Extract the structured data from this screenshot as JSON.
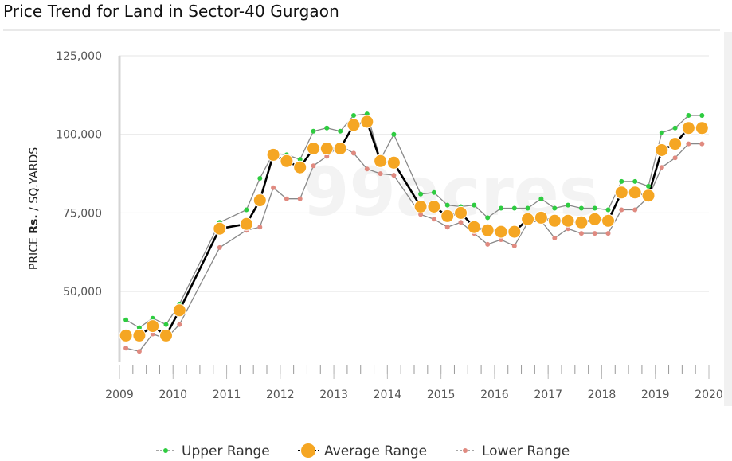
{
  "header": {
    "title": "Price Trend for Land in Sector-40 Gurgaon"
  },
  "watermark": "99acres",
  "colors": {
    "upper": "#2ecc40",
    "average": "#f5a623",
    "average_line": "#000000",
    "lower": "#e08a80",
    "range_line": "#888888",
    "grid": "#e6e6e6"
  },
  "chart_data": {
    "type": "line",
    "title": "Price Trend for Land in Sector-40 Gurgaon",
    "ylabel_prefix": "PRICE ",
    "ylabel_bold": "Rs.",
    "ylabel_suffix": " / SQ.YARDS",
    "xlabel": "",
    "y_ticks": [
      "50,000",
      "75,000",
      "100,000",
      "125,000"
    ],
    "y_tick_values": [
      50000,
      75000,
      100000,
      125000
    ],
    "ylim": [
      27500,
      125000
    ],
    "x_ticks": [
      "2009",
      "2010",
      "2011",
      "2012",
      "2013",
      "2014",
      "2015",
      "2016",
      "2017",
      "2018",
      "2019",
      "2020"
    ],
    "xlim": [
      2009.0,
      2020.0
    ],
    "grid": true,
    "legend_position": "bottom",
    "series": [
      {
        "name": "Upper Range",
        "x": [
          2009.12,
          2009.37,
          2009.62,
          2009.87,
          2010.12,
          2010.87,
          2011.37,
          2011.62,
          2011.87,
          2012.12,
          2012.37,
          2012.62,
          2012.87,
          2013.12,
          2013.37,
          2013.62,
          2013.87,
          2014.12,
          2014.62,
          2014.87,
          2015.12,
          2015.37,
          2015.62,
          2015.87,
          2016.12,
          2016.37,
          2016.62,
          2016.87,
          2017.12,
          2017.37,
          2017.62,
          2017.87,
          2018.12,
          2018.37,
          2018.62,
          2018.87,
          2019.12,
          2019.37,
          2019.62,
          2019.87
        ],
        "y": [
          41000,
          38500,
          41500,
          39500,
          46000,
          72000,
          76000,
          86000,
          94000,
          93500,
          92000,
          101000,
          102000,
          101000,
          106000,
          106500,
          92000,
          100000,
          81000,
          81500,
          77500,
          77000,
          77500,
          73500,
          76500,
          76500,
          76500,
          79500,
          76500,
          77500,
          76500,
          76500,
          76000,
          85000,
          85000,
          83500,
          100500,
          102000,
          106000,
          106000
        ]
      },
      {
        "name": "Average Range",
        "x": [
          2009.12,
          2009.37,
          2009.62,
          2009.87,
          2010.12,
          2010.87,
          2011.37,
          2011.62,
          2011.87,
          2012.12,
          2012.37,
          2012.62,
          2012.87,
          2013.12,
          2013.37,
          2013.62,
          2013.87,
          2014.12,
          2014.62,
          2014.87,
          2015.12,
          2015.37,
          2015.62,
          2015.87,
          2016.12,
          2016.37,
          2016.62,
          2016.87,
          2017.12,
          2017.37,
          2017.62,
          2017.87,
          2018.12,
          2018.37,
          2018.62,
          2018.87,
          2019.12,
          2019.37,
          2019.62,
          2019.87
        ],
        "y": [
          36000,
          36000,
          39000,
          36000,
          44000,
          70000,
          71500,
          79000,
          93500,
          91500,
          89500,
          95500,
          95500,
          95500,
          103000,
          104000,
          91500,
          91000,
          77000,
          77000,
          74000,
          75000,
          70500,
          69500,
          69000,
          69000,
          73000,
          73500,
          72500,
          72500,
          72000,
          73000,
          72500,
          81500,
          81500,
          80500,
          95000,
          97000,
          102000,
          102000
        ]
      },
      {
        "name": "Lower Range",
        "x": [
          2009.12,
          2009.37,
          2009.62,
          2009.87,
          2010.12,
          2010.87,
          2011.37,
          2011.62,
          2011.87,
          2012.12,
          2012.37,
          2012.62,
          2012.87,
          2013.12,
          2013.37,
          2013.62,
          2013.87,
          2014.12,
          2014.62,
          2014.87,
          2015.12,
          2015.37,
          2015.62,
          2015.87,
          2016.12,
          2016.37,
          2016.62,
          2016.87,
          2017.12,
          2017.37,
          2017.62,
          2017.87,
          2018.12,
          2018.37,
          2018.62,
          2018.87,
          2019.12,
          2019.37,
          2019.62,
          2019.87
        ],
        "y": [
          32000,
          31000,
          36500,
          35000,
          39500,
          64000,
          69500,
          70500,
          83000,
          79500,
          79500,
          90000,
          93000,
          96500,
          94000,
          89000,
          87500,
          87000,
          74500,
          73000,
          70500,
          72000,
          68500,
          65000,
          66500,
          64500,
          72000,
          72500,
          67000,
          70000,
          68500,
          68500,
          68500,
          76000,
          76000,
          80000,
          89500,
          92500,
          97000,
          97000
        ]
      }
    ]
  }
}
